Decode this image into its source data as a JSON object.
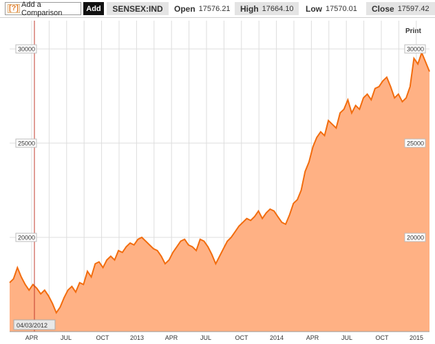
{
  "toolbar": {
    "help_icon": "[?]",
    "comparison_placeholder": "Add a Comparison",
    "add_label": "Add",
    "ticker": "SENSEX:IND",
    "open_label": "Open",
    "open_value": "17576.21",
    "high_label": "High",
    "high_value": "17664.10",
    "low_label": "Low",
    "low_value": "17570.01",
    "close_label": "Close",
    "close_value": "17597.42"
  },
  "print_label": "Print",
  "cursor_date": "04/03/2012",
  "colors": {
    "line": "#f26c0d",
    "fill": "#ffb184",
    "cursor": "#c0392b",
    "grid": "#dddddd"
  },
  "chart_data": {
    "type": "area",
    "x_tick_labels": [
      "APR",
      "JUL",
      "OCT",
      "2013",
      "APR",
      "JUL",
      "OCT",
      "2014",
      "APR",
      "JUL",
      "OCT",
      "2015"
    ],
    "y_tick_labels_left": [
      "20000",
      "25000",
      "30000"
    ],
    "y_tick_labels_right": [
      "20000",
      "25000",
      "30000"
    ],
    "ylim": [
      15000,
      31500
    ],
    "x_start": "2012-02",
    "x_end": "2015-03",
    "grid": true,
    "series": [
      {
        "values": [
          [
            0,
            17600
          ],
          [
            1,
            17800
          ],
          [
            2,
            18400
          ],
          [
            3,
            17900
          ],
          [
            4,
            17500
          ],
          [
            5,
            17200
          ],
          [
            6,
            17500
          ],
          [
            7,
            17300
          ],
          [
            8,
            17000
          ],
          [
            9,
            17200
          ],
          [
            10,
            16900
          ],
          [
            11,
            16500
          ],
          [
            12,
            16000
          ],
          [
            13,
            16300
          ],
          [
            14,
            16800
          ],
          [
            15,
            17200
          ],
          [
            16,
            17400
          ],
          [
            17,
            17100
          ],
          [
            18,
            17600
          ],
          [
            19,
            17500
          ],
          [
            20,
            18200
          ],
          [
            21,
            17900
          ],
          [
            22,
            18600
          ],
          [
            23,
            18700
          ],
          [
            24,
            18400
          ],
          [
            25,
            18800
          ],
          [
            26,
            19000
          ],
          [
            27,
            18800
          ],
          [
            28,
            19300
          ],
          [
            29,
            19200
          ],
          [
            30,
            19500
          ],
          [
            31,
            19700
          ],
          [
            32,
            19600
          ],
          [
            33,
            19900
          ],
          [
            34,
            20000
          ],
          [
            35,
            19800
          ],
          [
            36,
            19600
          ],
          [
            37,
            19400
          ],
          [
            38,
            19300
          ],
          [
            39,
            19000
          ],
          [
            40,
            18600
          ],
          [
            41,
            18800
          ],
          [
            42,
            19200
          ],
          [
            43,
            19500
          ],
          [
            44,
            19800
          ],
          [
            45,
            19900
          ],
          [
            46,
            19600
          ],
          [
            47,
            19500
          ],
          [
            48,
            19300
          ],
          [
            49,
            19900
          ],
          [
            50,
            19800
          ],
          [
            51,
            19500
          ],
          [
            52,
            19100
          ],
          [
            53,
            18600
          ],
          [
            54,
            19000
          ],
          [
            55,
            19400
          ],
          [
            56,
            19800
          ],
          [
            57,
            20000
          ],
          [
            58,
            20300
          ],
          [
            59,
            20600
          ],
          [
            60,
            20800
          ],
          [
            61,
            21000
          ],
          [
            62,
            20900
          ],
          [
            63,
            21100
          ],
          [
            64,
            21400
          ],
          [
            65,
            21000
          ],
          [
            66,
            21300
          ],
          [
            67,
            21500
          ],
          [
            68,
            21400
          ],
          [
            69,
            21100
          ],
          [
            70,
            20800
          ],
          [
            71,
            20700
          ],
          [
            72,
            21200
          ],
          [
            73,
            21800
          ],
          [
            74,
            22000
          ],
          [
            75,
            22500
          ],
          [
            76,
            23500
          ],
          [
            77,
            24000
          ],
          [
            78,
            24800
          ],
          [
            79,
            25300
          ],
          [
            80,
            25600
          ],
          [
            81,
            25400
          ],
          [
            82,
            26200
          ],
          [
            83,
            26000
          ],
          [
            84,
            25800
          ],
          [
            85,
            26600
          ],
          [
            86,
            26800
          ],
          [
            87,
            27300
          ],
          [
            88,
            26600
          ],
          [
            89,
            27000
          ],
          [
            90,
            26800
          ],
          [
            91,
            27400
          ],
          [
            92,
            27600
          ],
          [
            93,
            27300
          ],
          [
            94,
            27900
          ],
          [
            95,
            28000
          ],
          [
            96,
            28300
          ],
          [
            97,
            28500
          ],
          [
            98,
            28000
          ],
          [
            99,
            27400
          ],
          [
            100,
            27600
          ],
          [
            101,
            27200
          ],
          [
            102,
            27400
          ],
          [
            103,
            28000
          ],
          [
            104,
            29500
          ],
          [
            105,
            29200
          ],
          [
            106,
            29800
          ],
          [
            107,
            29300
          ],
          [
            108,
            28800
          ]
        ]
      }
    ]
  }
}
